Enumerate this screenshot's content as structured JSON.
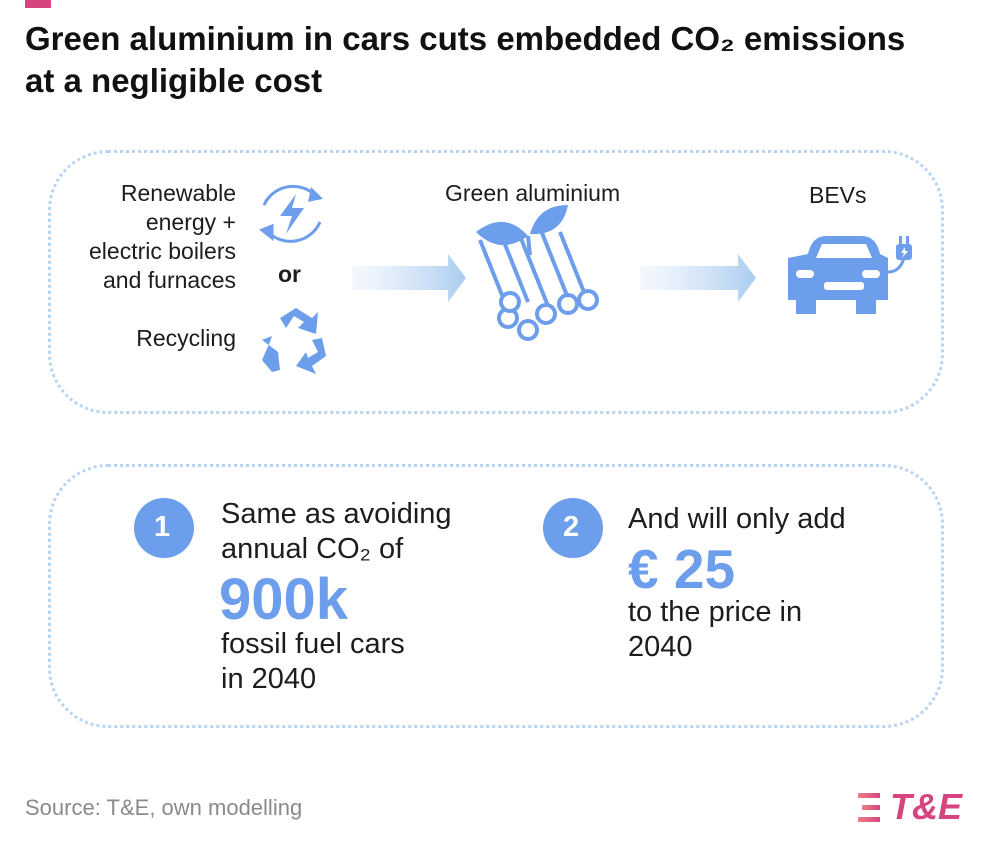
{
  "header": {
    "title_lines": [
      "Green aluminium in cars cuts embedded CO₂ emissions",
      "at a negligible cost"
    ]
  },
  "process": {
    "sources": {
      "renewable_lines": [
        "Renewable",
        "energy +",
        "electric boilers",
        "and furnaces"
      ],
      "or": "or",
      "recycling": "Recycling"
    },
    "middle": "Green aluminium",
    "end": "BEVs"
  },
  "facts": [
    {
      "number": "1",
      "lines_before": [
        "Same as avoiding",
        "annual CO₂ of"
      ],
      "highlight": "900k",
      "lines_after": [
        "fossil fuel cars",
        "in 2040"
      ]
    },
    {
      "number": "2",
      "lines_before": [
        "And will only add"
      ],
      "highlight": "€ 25",
      "lines_after": [
        "to the price in",
        "2040"
      ]
    }
  ],
  "footer": {
    "source": "Source: T&E, own modelling",
    "logo": "T&E"
  }
}
